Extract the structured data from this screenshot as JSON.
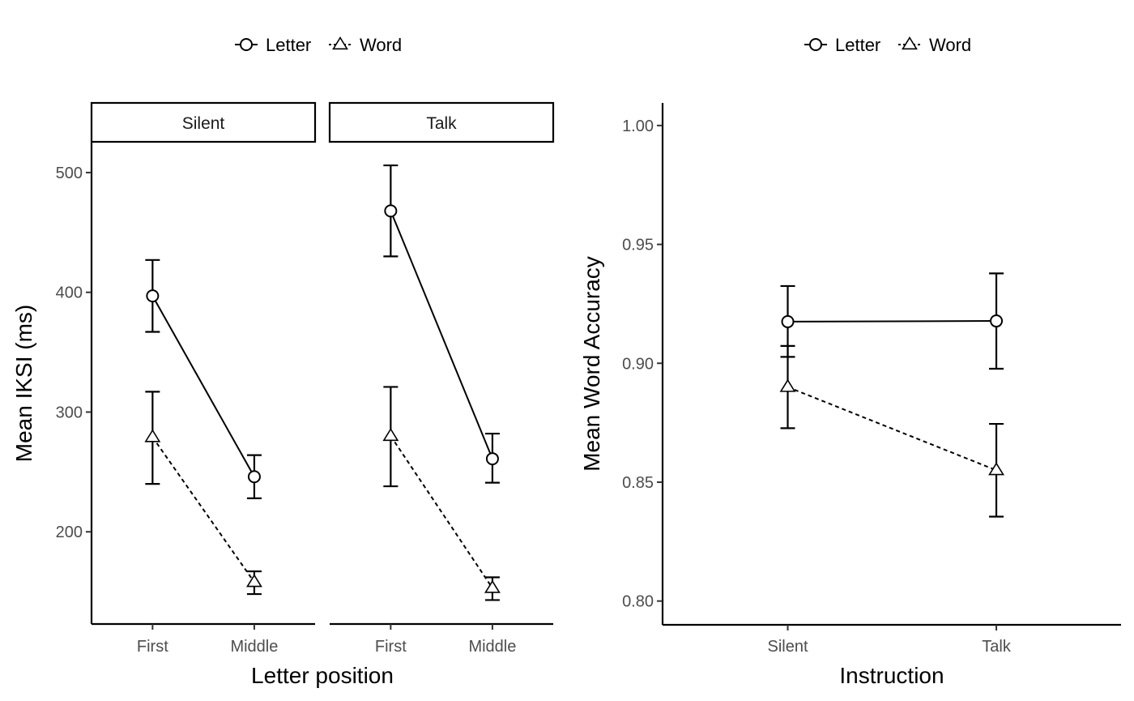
{
  "chart_data": [
    {
      "type": "line",
      "facets": [
        "Silent",
        "Talk"
      ],
      "categories": [
        "First",
        "Middle"
      ],
      "xlabel": "Letter position",
      "ylabel": "Mean IKSI (ms)",
      "ylim": [
        123,
        525
      ],
      "yticks": [
        "200",
        "300",
        "400",
        "500"
      ],
      "grid": false,
      "legend_position": "top",
      "legend": [
        "Letter",
        "Word"
      ],
      "series": [
        {
          "name": "Letter",
          "line_style": "solid",
          "marker": "circle",
          "facets": {
            "Silent": {
              "values": [
                397,
                246
              ],
              "lower": [
                367,
                228
              ],
              "upper": [
                427,
                264
              ]
            },
            "Talk": {
              "values": [
                468,
                261
              ],
              "lower": [
                430,
                241
              ],
              "upper": [
                506,
                282
              ]
            }
          }
        },
        {
          "name": "Word",
          "line_style": "dashed",
          "marker": "triangle",
          "facets": {
            "Silent": {
              "values": [
                279,
                158
              ],
              "lower": [
                240,
                148
              ],
              "upper": [
                317,
                167
              ]
            },
            "Talk": {
              "values": [
                280,
                153
              ],
              "lower": [
                238,
                143
              ],
              "upper": [
                321,
                162
              ]
            }
          }
        }
      ]
    },
    {
      "type": "line",
      "categories": [
        "Silent",
        "Talk"
      ],
      "xlabel": "Instruction",
      "ylabel": "Mean Word Accuracy",
      "ylim": [
        0.79,
        1.0095
      ],
      "yticks": [
        "0.80",
        "0.85",
        "0.90",
        "0.95",
        "1.00"
      ],
      "grid": false,
      "legend_position": "top",
      "legend": [
        "Letter",
        "Word"
      ],
      "series": [
        {
          "name": "Letter",
          "line_style": "solid",
          "marker": "circle",
          "values": [
            0.9175,
            0.9178
          ],
          "lower": [
            0.9027,
            0.8977
          ],
          "upper": [
            0.9325,
            0.9378
          ]
        },
        {
          "name": "Word",
          "line_style": "dashed",
          "marker": "triangle",
          "values": [
            0.89,
            0.855
          ],
          "lower": [
            0.8727,
            0.8355
          ],
          "upper": [
            0.9073,
            0.8745
          ]
        }
      ]
    }
  ]
}
